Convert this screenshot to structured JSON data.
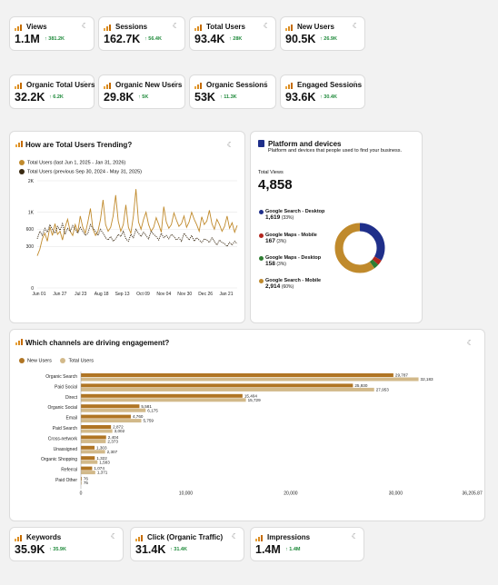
{
  "kpi_row1": [
    {
      "label": "Views",
      "value": "1.1M",
      "delta": "↑ 381.2K"
    },
    {
      "label": "Sessions",
      "value": "162.7K",
      "delta": "↑ 56.4K"
    },
    {
      "label": "Total Users",
      "value": "93.4K",
      "delta": "↑ 28K"
    },
    {
      "label": "New Users",
      "value": "90.5K",
      "delta": "↑ 26.9K"
    }
  ],
  "kpi_row2": [
    {
      "label": "Organic Total Users",
      "value": "32.2K",
      "delta": "↑ 6.2K"
    },
    {
      "label": "Organic New Users",
      "value": "29.8K",
      "delta": "↑ 5K"
    },
    {
      "label": "Organic Sessions",
      "value": "53K",
      "delta": "↑ 11.3K"
    },
    {
      "label": "Engaged Sessions",
      "value": "93.6K",
      "delta": "↑ 30.4K"
    }
  ],
  "kpi_row3": [
    {
      "label": "Keywords",
      "value": "35.9K",
      "delta": "↑ 35.9K"
    },
    {
      "label": "Click (Organic Traffic)",
      "value": "31.4K",
      "delta": "↑ 31.4K"
    },
    {
      "label": "Impressions",
      "value": "1.4M",
      "delta": "↑ 1.4M"
    }
  ],
  "more_glyph": "☾",
  "colors": {
    "gold": "#c08a2c",
    "dark": "#3a2a12",
    "navy": "#1f2f8a",
    "red": "#b3261e",
    "green": "#2e7d32",
    "tan": "#d2b98a",
    "brown": "#b07524",
    "delta_green": "#1f8a3b"
  },
  "trend": {
    "title": "How are Total Users Trending?",
    "legend_current": "Total Users (last Jun 1, 2025 - Jan 31, 2026)",
    "legend_previous": "Total Users (previous Sep 30, 2024 - May 31, 2025)"
  },
  "platform": {
    "title": "Platform and devices",
    "subtitle": "Platform and devices that people used to find your business.",
    "total_label": "Total Views",
    "total_value": "4,858",
    "items": [
      {
        "name": "Google Search - Desktop",
        "value": "1,619",
        "pct": "(33%)",
        "color": "#1f2f8a",
        "share": 33.3
      },
      {
        "name": "Google Maps - Mobile",
        "value": "167",
        "pct": "(3%)",
        "color": "#b3261e",
        "share": 3.4
      },
      {
        "name": "Google Maps - Desktop",
        "value": "158",
        "pct": "(3%)",
        "color": "#2e7d32",
        "share": 3.3
      },
      {
        "name": "Google Search - Mobile",
        "value": "2,914",
        "pct": "(60%)",
        "color": "#c08a2c",
        "share": 60.0
      }
    ]
  },
  "channels": {
    "title": "Which channels are driving engagement?",
    "legend_new": "New Users",
    "legend_total": "Total Users"
  },
  "chart_data": [
    {
      "type": "line",
      "title": "How are Total Users Trending?",
      "x_tick_labels": [
        "Jun 01",
        "Jun 27",
        "Jul 23",
        "Aug 18",
        "Sep 13",
        "Oct 09",
        "Nov 04",
        "Nov 30",
        "Dec 26",
        "Jan 21"
      ],
      "y_tick_labels": [
        "2K",
        "1K",
        "600",
        "300",
        "0"
      ],
      "y_ticks": [
        2000,
        1000,
        600,
        300,
        0
      ],
      "y_scale": "sqrt",
      "ylim": [
        0,
        2000
      ],
      "grid": "horizontal",
      "legend_position": "top-left",
      "series": [
        {
          "name": "Total Users (last Jun 1, 2025 - Jan 31, 2026)",
          "color": "#c08a2c",
          "style": "solid",
          "values": [
            180,
            260,
            420,
            520,
            380,
            650,
            480,
            720,
            500,
            560,
            400,
            640,
            820,
            560,
            480,
            700,
            540,
            900,
            640,
            520,
            760,
            1100,
            600,
            480,
            560,
            820,
            1350,
            700,
            560,
            640,
            900,
            1500,
            780,
            560,
            700,
            1200,
            640,
            520,
            900,
            1700,
            760,
            600,
            820,
            1000,
            700,
            560,
            640,
            860,
            700,
            540,
            1150,
            760,
            620,
            700,
            980,
            800,
            660,
            720,
            900,
            640,
            760,
            1000,
            820,
            700,
            560,
            880,
            700,
            780,
            1050,
            720,
            600,
            820,
            700,
            560,
            660,
            900,
            620,
            740,
            540,
            680
          ]
        },
        {
          "name": "Total Users (previous Sep 30, 2024 - May 31, 2025)",
          "color": "#3a2a12",
          "style": "dotted",
          "values": [
            420,
            560,
            480,
            620,
            540,
            700,
            600,
            520,
            660,
            580,
            720,
            500,
            620,
            560,
            680,
            600,
            520,
            640,
            560,
            480,
            520,
            700,
            620,
            560,
            480,
            600,
            520,
            440,
            400,
            460,
            380,
            420,
            500,
            460,
            560,
            420,
            380,
            500,
            440,
            600,
            520,
            460,
            540,
            480,
            420,
            560,
            500,
            460,
            400,
            520,
            440,
            480,
            420,
            500,
            460,
            400,
            440,
            380,
            520,
            460,
            400,
            480,
            380,
            440,
            400,
            360,
            420,
            400,
            360,
            440,
            380,
            320,
            400,
            360,
            340,
            300,
            360,
            320,
            380,
            340
          ]
        }
      ]
    },
    {
      "type": "pie",
      "title": "Platform and devices",
      "categories": [
        "Google Search - Desktop",
        "Google Maps - Mobile",
        "Google Maps - Desktop",
        "Google Search - Mobile"
      ],
      "values": [
        1619,
        167,
        158,
        2914
      ]
    },
    {
      "type": "bar",
      "orientation": "horizontal",
      "title": "Which channels are driving engagement?",
      "categories": [
        "Organic Search",
        "Paid Social",
        "Direct",
        "Organic Social",
        "Email",
        "Paid Search",
        "Cross-network",
        "Unassigned",
        "Organic Shopping",
        "Referral",
        "Paid Other"
      ],
      "series": [
        {
          "name": "New Users",
          "color": "#b07524",
          "values": [
            29787,
            25930,
            15404,
            5581,
            4760,
            2872,
            2404,
            1303,
            1322,
            1074,
            76
          ],
          "labels": [
            "29,787",
            "25,930",
            "15,404",
            "5,581",
            "4,760",
            "2,872",
            "2,404",
            "1,303",
            "1,322",
            "1,074",
            "76"
          ]
        },
        {
          "name": "Total Users",
          "color": "#d2b98a",
          "values": [
            32183,
            27953,
            15729,
            6175,
            5759,
            3002,
            2373,
            2307,
            1583,
            1371,
            75
          ],
          "labels": [
            "32,183",
            "27,953",
            "15,729",
            "6,175",
            "5,759",
            "3,002",
            "2,373",
            "2,307",
            "1,583",
            "1,371",
            "75"
          ]
        }
      ],
      "x_tick_labels": [
        "0",
        "10,000",
        "20,000",
        "30,000",
        "36,205.875"
      ],
      "x_ticks": [
        0,
        10000,
        20000,
        30000,
        36205.875
      ],
      "xlim": [
        0,
        36205.875
      ],
      "legend_position": "top-left"
    }
  ]
}
